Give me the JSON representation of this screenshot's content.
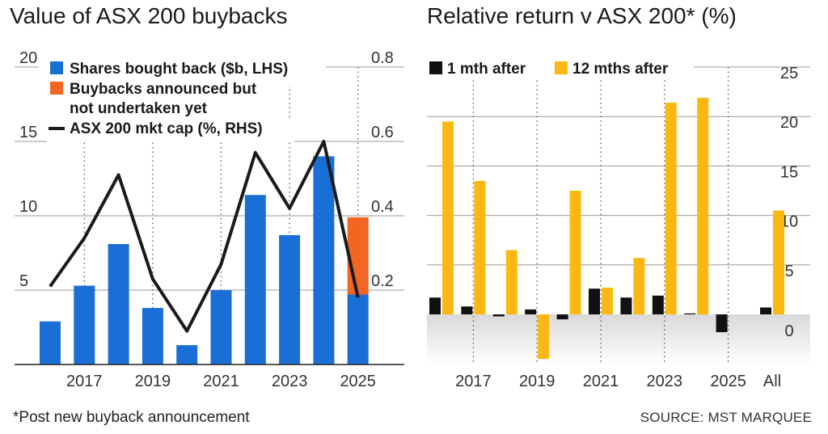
{
  "chart_data": [
    {
      "type": "bar",
      "title": "Value of ASX 200 buybacks",
      "categories": [
        "2016",
        "2017",
        "2018",
        "2019",
        "2020",
        "2021",
        "2022",
        "2023",
        "2024",
        "2025"
      ],
      "x_tick_labels": [
        "2017",
        "2019",
        "2021",
        "2023",
        "2025"
      ],
      "y_left": {
        "ticks": [
          "5",
          "10",
          "15",
          "20"
        ],
        "lim": [
          0,
          20
        ]
      },
      "y_right": {
        "ticks": [
          "0.2",
          "0.4",
          "0.6",
          "0.8"
        ],
        "lim": [
          0,
          0.8
        ]
      },
      "legend": [
        {
          "label": "Shares bought back ($b, LHS)",
          "color": "#1a6fd6"
        },
        {
          "label": "Buybacks announced but",
          "label2": "not undertaken yet",
          "color": "#f26522"
        },
        {
          "label": "ASX 200 mkt cap (%, RHS)",
          "color": "#1a1a1a"
        }
      ],
      "series": [
        {
          "name": "Shares bought back ($b, LHS)",
          "type": "bar",
          "axis": "left",
          "color": "#1a6fd6",
          "values": [
            2.9,
            5.3,
            8.1,
            3.8,
            1.3,
            5.0,
            11.4,
            8.7,
            14.0,
            4.7
          ]
        },
        {
          "name": "Buybacks announced but not undertaken yet",
          "type": "bar-stacked",
          "axis": "left",
          "color": "#f26522",
          "values": [
            0,
            0,
            0,
            0,
            0,
            0,
            0,
            0,
            0,
            5.2
          ]
        },
        {
          "name": "ASX 200 mkt cap (%, RHS)",
          "type": "line",
          "axis": "right",
          "color": "#1a1a1a",
          "values": [
            0.21,
            0.34,
            0.51,
            0.23,
            0.09,
            0.27,
            0.57,
            0.42,
            0.6,
            0.18
          ]
        }
      ]
    },
    {
      "type": "bar",
      "title": "Relative return v ASX 200* (%)",
      "categories": [
        "2016",
        "2017",
        "2018",
        "2019",
        "2020",
        "2021",
        "2022",
        "2023",
        "2024",
        "2025",
        "All"
      ],
      "x_tick_labels": [
        "2017",
        "2019",
        "2021",
        "2023",
        "2025",
        "All"
      ],
      "y": {
        "ticks": [
          "0",
          "5",
          "10",
          "15",
          "20",
          "25"
        ],
        "lim": [
          -4,
          25
        ]
      },
      "legend": [
        {
          "label": "1 mth after",
          "color": "#111111"
        },
        {
          "label": "12 mths after",
          "color": "#fbb812"
        }
      ],
      "series": [
        {
          "name": "1 mth after",
          "color": "#111111",
          "values": [
            1.7,
            0.8,
            -0.2,
            0.5,
            -0.5,
            2.6,
            1.7,
            1.9,
            0.1,
            -1.8,
            0.7
          ]
        },
        {
          "name": "12 mths after",
          "color": "#fbb812",
          "values": [
            19.5,
            13.5,
            6.5,
            -4.5,
            12.5,
            2.7,
            5.7,
            21.4,
            21.9,
            0,
            10.5
          ]
        }
      ]
    }
  ],
  "footnote": "*Post new buyback announcement",
  "source": "SOURCE: MST MARQUEE"
}
